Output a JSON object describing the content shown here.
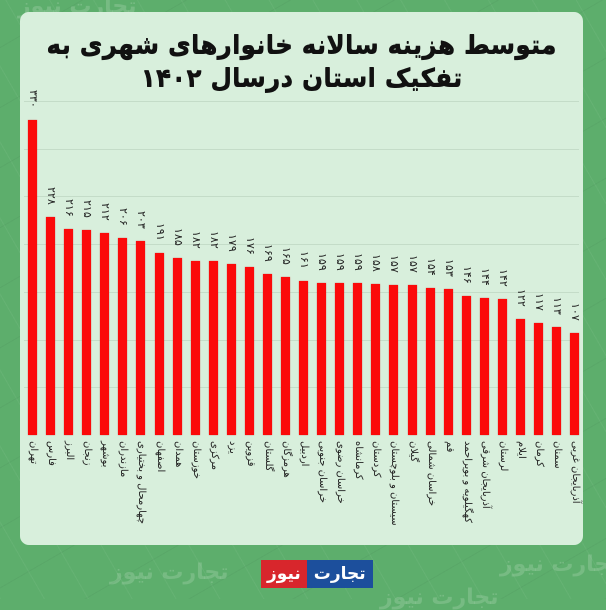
{
  "title": "متوسط هزینه سالانه خانوارهای شهری به تفکیک استان درسال ۱۴۰۲",
  "title_lines": [
    "متوسط هزینه سالانه خانوارهای شهری به",
    "تفکیک استان درسال ۱۴۰۲"
  ],
  "logo": {
    "part_blue": "تجارت",
    "part_red": "نیوز"
  },
  "watermark": "تجارت نیوز",
  "colors": {
    "bar": "#fb0a0a",
    "card": "#d8efdc",
    "background": "#5dae6c",
    "logo_red": "#d8262c",
    "logo_blue": "#1c4f9c"
  },
  "chart_data": {
    "type": "bar",
    "title": "متوسط هزینه سالانه خانوارهای شهری به تفکیک استان درسال ۱۴۰۲",
    "xlabel": "",
    "ylabel": "",
    "ylim": [
      0,
      350
    ],
    "grid": true,
    "legend": "none",
    "categories": [
      "تهران",
      "فارس",
      "البرز",
      "زنجان",
      "بوشهر",
      "مازندران",
      "چهارمحال و بختیاری",
      "اصفهان",
      "همدان",
      "خوزستان",
      "مرکزی",
      "یزد",
      "قزوین",
      "گلستان",
      "هرمزگان",
      "اردبیل",
      "خراسان جنوبی",
      "خراسان رضوی",
      "کرمانشاه",
      "کردستان",
      "سیستان و بلوچستان",
      "گیلان",
      "خراسان شمالی",
      "قم",
      "کهگیلویه و بویراحمد",
      "آذربایجان شرقی",
      "لرستان",
      "ایلام",
      "کرمان",
      "سمنان",
      "آذربایجان غربی"
    ],
    "values": [
      330,
      228,
      216,
      215,
      212,
      206,
      203,
      191,
      185,
      182,
      182,
      179,
      176,
      169,
      165,
      161,
      159,
      159,
      159,
      158,
      157,
      157,
      154,
      153,
      146,
      144,
      142,
      122,
      117,
      113,
      107
    ],
    "value_labels": [
      "۳۳۰",
      "۲۲۸",
      "۲۱۶",
      "۲۱۵",
      "۲۱۲",
      "۲۰۶",
      "۲۰۳",
      "۱۹۱",
      "۱۸۵",
      "۱۸۲",
      "۱۸۲",
      "۱۷۹",
      "۱۷۶",
      "۱۶۹",
      "۱۶۵",
      "۱۶۱",
      "۱۵۹",
      "۱۵۹",
      "۱۵۹",
      "۱۵۸",
      "۱۵۷",
      "۱۵۷",
      "۱۵۴",
      "۱۵۳",
      "۱۴۶",
      "۱۴۴",
      "۱۴۲",
      "۱۲۲",
      "۱۱۷",
      "۱۱۳",
      "۱۰۷"
    ]
  }
}
